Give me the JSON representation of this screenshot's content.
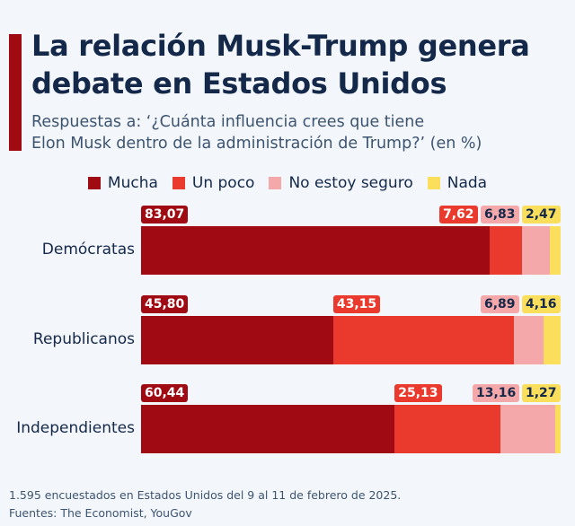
{
  "title_line1": "La relación Musk-Trump genera",
  "title_line2": "debate en Estados Unidos",
  "subtitle_line1": "Respuestas a: ‘¿Cuánta influencia crees que tiene",
  "subtitle_line2": "Elon Musk dentro de la administración de Trump?’ (en %)",
  "footer": {
    "note": "1.595 encuestados en Estados Unidos del 9 al 11 de febrero de 2025.",
    "sources": "Fuentes: The Economist, YouGov"
  },
  "chart_data": {
    "type": "bar",
    "orientation": "horizontal",
    "stacked": true,
    "xlim": [
      0,
      100
    ],
    "legend_position": "top",
    "categories": [
      "Demócratas",
      "Republicanos",
      "Independientes"
    ],
    "series": [
      {
        "name": "Mucha",
        "color": "#a00a12",
        "label_text_color": "#ffffff",
        "values": [
          83.07,
          45.8,
          60.44
        ],
        "labels": [
          "83,07",
          "45,80",
          "60,44"
        ]
      },
      {
        "name": "Un poco",
        "color": "#ea3a2d",
        "label_text_color": "#ffffff",
        "values": [
          7.62,
          43.15,
          25.13
        ],
        "labels": [
          "7,62",
          "43,15",
          "25,13"
        ]
      },
      {
        "name": "No estoy seguro",
        "color": "#f4a8aa",
        "label_text_color": "#14284a",
        "values": [
          6.83,
          6.89,
          13.16
        ],
        "labels": [
          "6,83",
          "6,89",
          "13,16"
        ]
      },
      {
        "name": "Nada",
        "color": "#fbdf5c",
        "label_text_color": "#14284a",
        "values": [
          2.47,
          4.16,
          1.27
        ],
        "labels": [
          "2,47",
          "4,16",
          "1,27"
        ]
      }
    ]
  }
}
